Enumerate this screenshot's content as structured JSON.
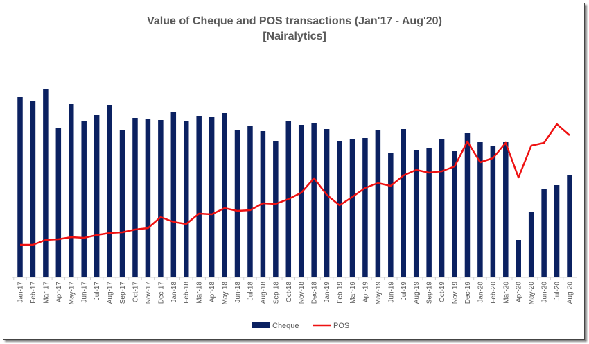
{
  "chart_data": {
    "type": "bar+line",
    "title": "Value of Cheque and POS transactions (Jan'17 - Aug'20)",
    "subtitle": "[Nairalytics]",
    "xlabel": "",
    "ylabel": "",
    "y_axis_labels_shown": false,
    "ylim": [
      0,
      300
    ],
    "grid": false,
    "legend_placement": "bottom",
    "categories": [
      "Jan-17",
      "Feb-17",
      "Mar-17",
      "Apr-17",
      "May-17",
      "Jun-17",
      "Jul-17",
      "Aug-17",
      "Sep-17",
      "Oct-17",
      "Nov-17",
      "Dec-17",
      "Jan-18",
      "Feb-18",
      "Mar-18",
      "Apr-18",
      "May-18",
      "Jun-18",
      "Jul-18",
      "Aug-18",
      "Sep-18",
      "Oct-18",
      "Nov-18",
      "Dec-18",
      "Jan-19",
      "Feb-19",
      "Mar-19",
      "Apr-19",
      "May-19",
      "Jun-19",
      "Jul-19",
      "Aug-19",
      "Sep-19",
      "Oct-19",
      "Nov-19",
      "Dec-19",
      "Jan-20",
      "Feb-20",
      "Mar-20",
      "Apr-20",
      "May-20",
      "Jun-20",
      "Jul-20",
      "Aug-20"
    ],
    "series": [
      {
        "name": "Cheque",
        "type": "bar",
        "color": "#0b2161",
        "values": [
          260,
          254,
          272,
          216,
          250,
          226,
          234,
          249,
          212,
          230,
          229,
          227,
          239,
          226,
          233,
          231,
          237,
          212,
          219,
          211,
          196,
          225,
          220,
          222,
          214,
          197,
          199,
          201,
          213,
          179,
          214,
          183,
          186,
          199,
          182,
          208,
          195,
          190,
          195,
          54,
          94,
          128,
          133,
          147
        ]
      },
      {
        "name": "POS",
        "type": "line",
        "color": "#ee1111",
        "values": [
          47,
          47,
          54,
          55,
          58,
          57,
          61,
          64,
          65,
          69,
          71,
          87,
          80,
          77,
          92,
          91,
          100,
          96,
          97,
          107,
          106,
          113,
          122,
          143,
          119,
          104,
          116,
          129,
          136,
          132,
          147,
          155,
          151,
          153,
          160,
          196,
          166,
          172,
          194,
          144,
          190,
          194,
          221,
          205
        ]
      }
    ]
  }
}
